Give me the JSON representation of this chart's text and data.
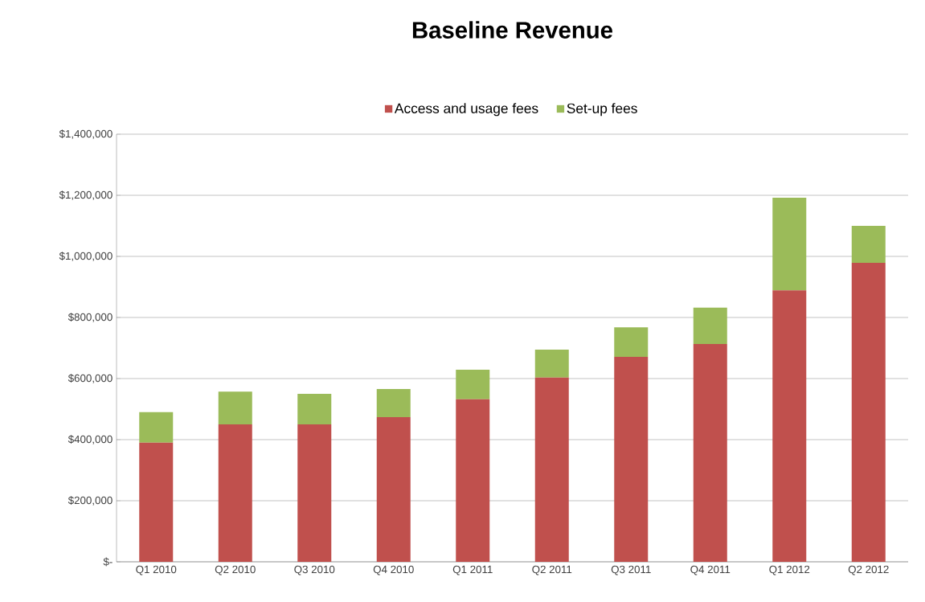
{
  "chart_data": {
    "type": "bar",
    "title": "Baseline Revenue",
    "stacked": true,
    "legend": "top",
    "grid": "y",
    "categories": [
      "Q1 2010",
      "Q2 2010",
      "Q3 2010",
      "Q4 2010",
      "Q1 2011",
      "Q2 2011",
      "Q3 2011",
      "Q4 2011",
      "Q1 2012",
      "Q2 2012"
    ],
    "series": [
      {
        "name": "Access and usage fees",
        "color": "#c0504d",
        "values": [
          390000,
          450000,
          450000,
          474000,
          532000,
          603000,
          671000,
          713000,
          889000,
          979000
        ]
      },
      {
        "name": "Set-up fees",
        "color": "#9bbb59",
        "values": [
          100000,
          107000,
          100000,
          92000,
          97000,
          92000,
          97000,
          119000,
          303000,
          121000
        ]
      }
    ],
    "ylim": [
      0,
      1400000
    ],
    "yticks": [
      {
        "value": 0,
        "label": "$-"
      },
      {
        "value": 200000,
        "label": "$200,000"
      },
      {
        "value": 400000,
        "label": "$400,000"
      },
      {
        "value": 600000,
        "label": "$600,000"
      },
      {
        "value": 800000,
        "label": "$800,000"
      },
      {
        "value": 1000000,
        "label": "$1,000,000"
      },
      {
        "value": 1200000,
        "label": "$1,200,000"
      },
      {
        "value": 1400000,
        "label": "$1,400,000"
      }
    ]
  }
}
